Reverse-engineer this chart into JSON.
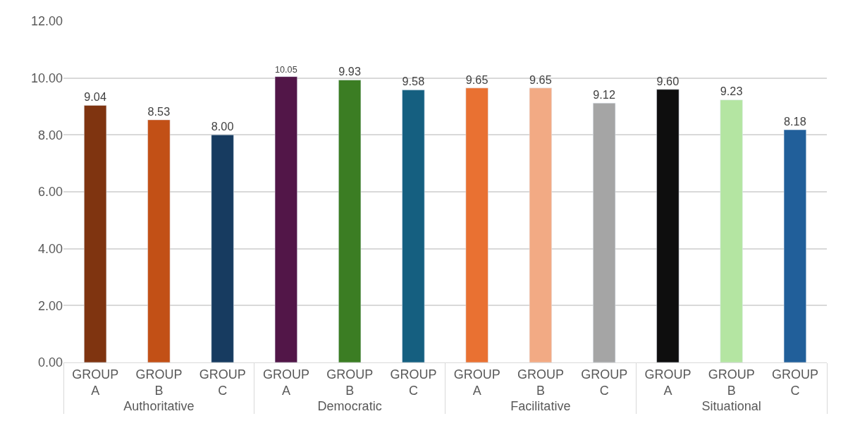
{
  "chart_data": {
    "type": "bar",
    "categories": [
      "GROUP A",
      "GROUP B",
      "GROUP C",
      "GROUP A",
      "GROUP B",
      "GROUP C",
      "GROUP A",
      "GROUP B",
      "GROUP C",
      "GROUP A",
      "GROUP B",
      "GROUP C"
    ],
    "values": [
      9.04,
      8.53,
      8.0,
      10.05,
      9.93,
      9.58,
      9.65,
      9.65,
      9.12,
      9.6,
      9.23,
      8.18
    ],
    "colors": [
      "#7f3410",
      "#c25016",
      "#173b60",
      "#521648",
      "#3b7d23",
      "#155f80",
      "#e97132",
      "#f2aa84",
      "#a5a5a5",
      "#0e0e0e",
      "#b4e5a2",
      "#215f9a"
    ],
    "value_labels": [
      "9.04",
      "8.53",
      "8.00",
      "10.05",
      "9.93",
      "9.58",
      "9.65",
      "9.65",
      "9.12",
      "9.60",
      "9.23",
      "8.18"
    ],
    "annotations": [
      "Authoritative",
      "Democratic",
      "Facilitative",
      "Situational"
    ],
    "ylim": [
      0,
      12
    ],
    "yticks": [
      {
        "value": 0,
        "label": "0.00"
      },
      {
        "value": 2,
        "label": "2.00"
      },
      {
        "value": 4,
        "label": "4.00"
      },
      {
        "value": 6,
        "label": "6.00"
      },
      {
        "value": 8,
        "label": "8.00"
      },
      {
        "value": 10,
        "label": "10.00"
      },
      {
        "value": 12,
        "label": "12.00"
      }
    ],
    "grid": "y",
    "legend": false
  }
}
